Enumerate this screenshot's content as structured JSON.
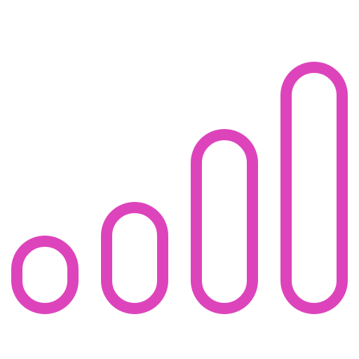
{
  "icon": {
    "name": "signal-strength-icon",
    "color": "#dd44bb",
    "bars": 4
  }
}
